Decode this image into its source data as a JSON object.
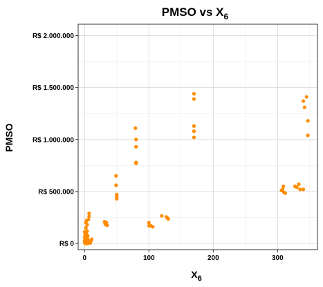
{
  "chart_data": {
    "type": "scatter",
    "title": "PMSO vs X",
    "title_subscript": "6",
    "xlabel": "X",
    "xlabel_subscript": "6",
    "ylabel": "PMSO",
    "xlim": [
      -10,
      362
    ],
    "ylim": [
      -60000,
      2110000
    ],
    "x_ticks": [
      0,
      100,
      200,
      300
    ],
    "x_tick_labels": [
      "0",
      "100",
      "200",
      "300"
    ],
    "y_ticks": [
      0,
      500000,
      1000000,
      1500000,
      2000000
    ],
    "y_tick_labels": [
      "R$ 0",
      "R$ 500.000",
      "R$ 1.000.000",
      "R$ 1.500.000",
      "R$ 2.000.000"
    ],
    "grid": true,
    "legend": "none",
    "point_color": "#FF8C00",
    "series": [
      {
        "points": [
          [
            0,
            10000
          ],
          [
            0,
            30000
          ],
          [
            0,
            60000
          ],
          [
            1,
            20000
          ],
          [
            1,
            80000
          ],
          [
            1,
            100000
          ],
          [
            2,
            5000
          ],
          [
            2,
            40000
          ],
          [
            2,
            150000
          ],
          [
            2,
            200000
          ],
          [
            3,
            15000
          ],
          [
            3,
            90000
          ],
          [
            3,
            220000
          ],
          [
            4,
            50000
          ],
          [
            4,
            120000
          ],
          [
            4,
            180000
          ],
          [
            5,
            70000
          ],
          [
            5,
            10000
          ],
          [
            6,
            230000
          ],
          [
            6,
            30000
          ],
          [
            7,
            260000
          ],
          [
            7,
            290000
          ],
          [
            8,
            20000
          ],
          [
            9,
            5000
          ],
          [
            10,
            25000
          ],
          [
            11,
            40000
          ],
          [
            1,
            0
          ],
          [
            3,
            0
          ],
          [
            5,
            0
          ],
          [
            0,
            110000
          ],
          [
            31,
            210000
          ],
          [
            32,
            190000
          ],
          [
            33,
            180000
          ],
          [
            34,
            200000
          ],
          [
            35,
            175000
          ],
          [
            49,
            650000
          ],
          [
            49,
            560000
          ],
          [
            50,
            470000
          ],
          [
            50,
            450000
          ],
          [
            50,
            430000
          ],
          [
            79,
            1110000
          ],
          [
            80,
            1000000
          ],
          [
            80,
            930000
          ],
          [
            80,
            780000
          ],
          [
            80,
            770000
          ],
          [
            100,
            200000
          ],
          [
            100,
            170000
          ],
          [
            103,
            170000
          ],
          [
            106,
            160000
          ],
          [
            120,
            265000
          ],
          [
            127,
            255000
          ],
          [
            129,
            245000
          ],
          [
            130,
            235000
          ],
          [
            170,
            1440000
          ],
          [
            170,
            1390000
          ],
          [
            170,
            1130000
          ],
          [
            170,
            1080000
          ],
          [
            170,
            1020000
          ],
          [
            306,
            510000
          ],
          [
            308,
            520000
          ],
          [
            309,
            550000
          ],
          [
            310,
            490000
          ],
          [
            312,
            485000
          ],
          [
            327,
            550000
          ],
          [
            330,
            540000
          ],
          [
            333,
            570000
          ],
          [
            335,
            520000
          ],
          [
            340,
            520000
          ],
          [
            340,
            1370000
          ],
          [
            342,
            1310000
          ],
          [
            345,
            1410000
          ],
          [
            347,
            1180000
          ],
          [
            347,
            1040000
          ]
        ]
      }
    ]
  }
}
